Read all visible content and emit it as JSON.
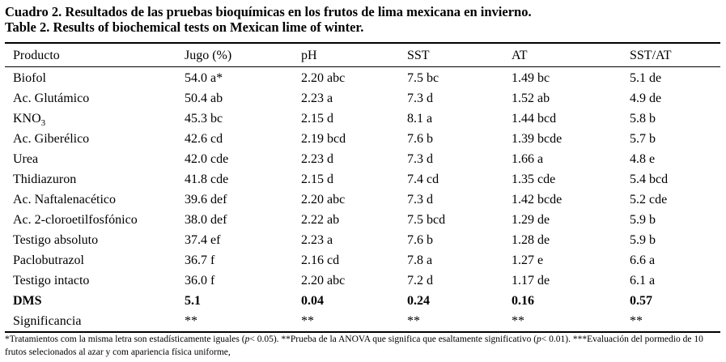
{
  "caption": {
    "line1": "Cuadro 2. Resultados de las pruebas bioquímicas en los frutos de lima mexicana en invierno.",
    "line2": "Table 2. Results of biochemical tests on Mexican lime of winter."
  },
  "table": {
    "headers": [
      "Producto",
      "Jugo (%)",
      "pH",
      "SST",
      "AT",
      "SST/AT"
    ],
    "rows": [
      [
        "Biofol",
        "54.0 a*",
        "2.20 abc",
        "7.5 bc",
        "1.49 bc",
        "5.1 de"
      ],
      [
        "Ac. Glutámico",
        "50.4 ab",
        "2.23 a",
        "7.3 d",
        "1.52 ab",
        "4.9 de"
      ],
      [
        "KNO",
        "45.3 bc",
        "2.15 d",
        "8.1 a",
        "1.44 bcd",
        "5.8 b"
      ],
      [
        "Ac. Giberélico",
        "42.6 cd",
        "2.19 bcd",
        "7.6 b",
        "1.39 bcde",
        "5.7 b"
      ],
      [
        "Urea",
        "42.0 cde",
        "2.23 d",
        "7.3 d",
        "1.66 a",
        "4.8 e"
      ],
      [
        "Thidiazuron",
        "41.8 cde",
        "2.15 d",
        "7.4 cd",
        "1.35 cde",
        "5.4 bcd"
      ],
      [
        "Ac. Naftalenacético",
        "39.6 def",
        "2.20 abc",
        "7.3 d",
        "1.42 bcde",
        "5.2 cde"
      ],
      [
        "Ac. 2-cloroetilfosfónico",
        "38.0 def",
        "2.22 ab",
        "7.5 bcd",
        "1.29 de",
        "5.9 b"
      ],
      [
        "Testigo absoluto",
        "37.4 ef",
        "2.23 a",
        "7.6 b",
        "1.28 de",
        "5.9 b"
      ],
      [
        "Paclobutrazol",
        "36.7 f",
        "2.16 cd",
        "7.8 a",
        "1.27 e",
        "6.6 a"
      ],
      [
        "Testigo intacto",
        "36.0 f",
        "2.20 abc",
        "7.2 d",
        "1.17 de",
        "6.1 a"
      ]
    ],
    "kno3_subscript": "3",
    "dms_row": [
      "DMS",
      "5.1",
      "0.04",
      "0.24",
      "0.16",
      "0.57"
    ],
    "significance_row": [
      "Significancia",
      "**",
      "**",
      "**",
      "**",
      "**"
    ]
  },
  "footnote": {
    "part1": "*Tratamientos com la misma letra son estadísticamente iguales (",
    "p1": "p",
    "part2": "< 0.05). **Prueba de la ANOVA que significa que esaltamente significativo (",
    "p2": "p",
    "part3": "< 0.01). ***Evaluación del pormedio de 10 frutos selecionados al azar y com apariencia física uniforme,"
  }
}
